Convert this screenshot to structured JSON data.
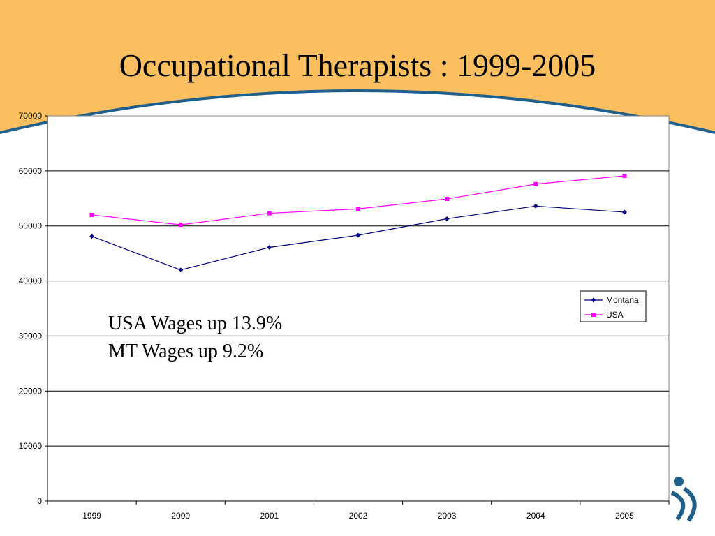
{
  "slide": {
    "title": "Occupational Therapists : 1999-2005",
    "header_color": "#fbbf60",
    "arc_color": "#1f5f8b"
  },
  "annotations": {
    "usa": "USA Wages up 13.9%",
    "mt": "MT Wages up 9.2%"
  },
  "chart_data": {
    "type": "line",
    "title": "",
    "xlabel": "",
    "ylabel": "",
    "categories": [
      "1999",
      "2000",
      "2001",
      "2002",
      "2003",
      "2004",
      "2005"
    ],
    "series": [
      {
        "name": "Montana",
        "color": "#000080",
        "marker": "diamond",
        "values": [
          48100,
          42000,
          46100,
          48300,
          51300,
          53600,
          52500
        ]
      },
      {
        "name": "USA",
        "color": "#ff00ff",
        "marker": "square",
        "values": [
          52000,
          50200,
          52300,
          53100,
          54900,
          57600,
          59100
        ]
      }
    ],
    "ylim": [
      0,
      70000
    ],
    "yticks": [
      0,
      10000,
      20000,
      30000,
      40000,
      50000,
      60000,
      70000
    ],
    "grid": true,
    "legend": "right"
  }
}
